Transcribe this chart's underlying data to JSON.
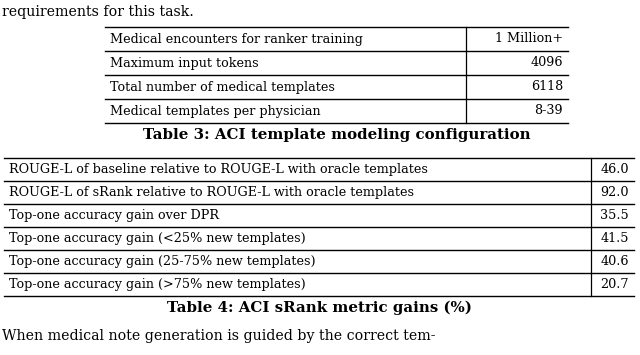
{
  "header_text": "requirements for this task.",
  "footer_text": "When medical note generation is guided by the correct tem-",
  "table3_title": "Table 3: ACI template modeling configuration",
  "table3_rows": [
    [
      "Medical encounters for ranker training",
      "1 Million+"
    ],
    [
      "Maximum input tokens",
      "4096"
    ],
    [
      "Total number of medical templates",
      "6118"
    ],
    [
      "Medical templates per physician",
      "8-39"
    ]
  ],
  "table4_title": "Table 4: ACI sRank metric gains (%)",
  "table4_rows": [
    [
      "ROUGE-L of baseline relative to ROUGE-L with oracle templates",
      "46.0"
    ],
    [
      "ROUGE-L of sRank relative to ROUGE-L with oracle templates",
      "92.0"
    ],
    [
      "Top-one accuracy gain over DPR",
      "35.5"
    ],
    [
      "Top-one accuracy gain (<25% new templates)",
      "41.5"
    ],
    [
      "Top-one accuracy gain (25-75% new templates)",
      "40.6"
    ],
    [
      "Top-one accuracy gain (>75% new templates)",
      "20.7"
    ]
  ],
  "bg_color": "#ffffff",
  "text_color": "#000000",
  "line_color": "#000000",
  "font_size": 9.2,
  "title_font_size": 10.8
}
